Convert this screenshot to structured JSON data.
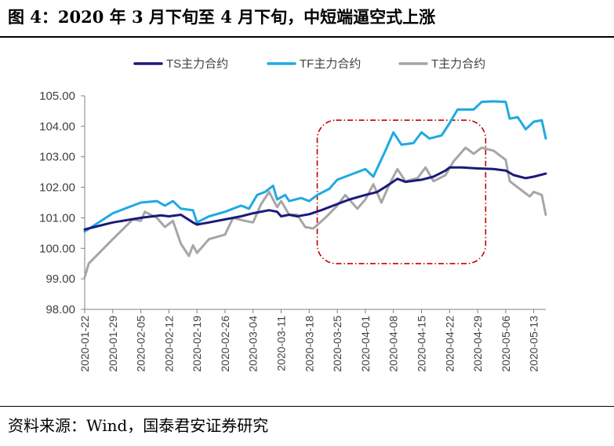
{
  "figure_title": "图 4：2020 年 3 月下旬至 4 月下旬，中短端逼空式上涨",
  "source_note": "资料来源：Wind，国泰君安证券研究",
  "chart_data": {
    "type": "line",
    "title": "",
    "xlabel": "",
    "ylabel": "",
    "ylim": [
      98.0,
      105.0
    ],
    "y_ticks": [
      "98.00",
      "99.00",
      "100.00",
      "101.00",
      "102.00",
      "103.00",
      "104.00",
      "105.00"
    ],
    "x_ticks": [
      "2020-01-22",
      "2020-01-29",
      "2020-02-05",
      "2020-02-12",
      "2020-02-19",
      "2020-02-26",
      "2020-03-04",
      "2020-03-11",
      "2020-03-18",
      "2020-03-25",
      "2020-04-01",
      "2020-04-08",
      "2020-04-15",
      "2020-04-22",
      "2020-04-29",
      "2020-05-06",
      "2020-05-13"
    ],
    "x_range": [
      "2020-01-22",
      "2020-05-16"
    ],
    "grid": false,
    "legend_position": "top",
    "annotation": "red dash-dot rounded rectangle highlighting 2020-03-20 to 2020-05-01",
    "series": [
      {
        "name": "TS主力合约",
        "color": "#1c1a7a",
        "points": [
          [
            "2020-01-22",
            100.62
          ],
          [
            "2020-01-29",
            100.85
          ],
          [
            "2020-02-05",
            101.0
          ],
          [
            "2020-02-08",
            101.05
          ],
          [
            "2020-02-10",
            101.08
          ],
          [
            "2020-02-12",
            101.05
          ],
          [
            "2020-02-15",
            101.1
          ],
          [
            "2020-02-18",
            100.85
          ],
          [
            "2020-02-19",
            100.78
          ],
          [
            "2020-02-22",
            100.85
          ],
          [
            "2020-02-26",
            100.95
          ],
          [
            "2020-03-01",
            101.05
          ],
          [
            "2020-03-04",
            101.15
          ],
          [
            "2020-03-08",
            101.25
          ],
          [
            "2020-03-10",
            101.2
          ],
          [
            "2020-03-11",
            101.05
          ],
          [
            "2020-03-13",
            101.1
          ],
          [
            "2020-03-15",
            101.05
          ],
          [
            "2020-03-18",
            101.12
          ],
          [
            "2020-03-21",
            101.25
          ],
          [
            "2020-03-25",
            101.45
          ],
          [
            "2020-03-28",
            101.6
          ],
          [
            "2020-04-01",
            101.75
          ],
          [
            "2020-04-04",
            101.85
          ],
          [
            "2020-04-07",
            102.1
          ],
          [
            "2020-04-09",
            102.28
          ],
          [
            "2020-04-11",
            102.18
          ],
          [
            "2020-04-15",
            102.25
          ],
          [
            "2020-04-18",
            102.35
          ],
          [
            "2020-04-21",
            102.55
          ],
          [
            "2020-04-22",
            102.65
          ],
          [
            "2020-04-25",
            102.65
          ],
          [
            "2020-04-29",
            102.62
          ],
          [
            "2020-05-03",
            102.6
          ],
          [
            "2020-05-06",
            102.55
          ],
          [
            "2020-05-08",
            102.4
          ],
          [
            "2020-05-11",
            102.3
          ],
          [
            "2020-05-13",
            102.35
          ],
          [
            "2020-05-16",
            102.45
          ]
        ]
      },
      {
        "name": "TF主力合约",
        "color": "#1faae2",
        "points": [
          [
            "2020-01-22",
            100.55
          ],
          [
            "2020-01-29",
            101.15
          ],
          [
            "2020-02-02",
            101.35
          ],
          [
            "2020-02-05",
            101.5
          ],
          [
            "2020-02-09",
            101.55
          ],
          [
            "2020-02-11",
            101.4
          ],
          [
            "2020-02-13",
            101.55
          ],
          [
            "2020-02-15",
            101.3
          ],
          [
            "2020-02-18",
            101.25
          ],
          [
            "2020-02-19",
            100.85
          ],
          [
            "2020-02-22",
            101.05
          ],
          [
            "2020-02-26",
            101.2
          ],
          [
            "2020-03-01",
            101.4
          ],
          [
            "2020-03-03",
            101.3
          ],
          [
            "2020-03-05",
            101.75
          ],
          [
            "2020-03-07",
            101.85
          ],
          [
            "2020-03-09",
            102.05
          ],
          [
            "2020-03-10",
            101.6
          ],
          [
            "2020-03-12",
            101.75
          ],
          [
            "2020-03-13",
            101.55
          ],
          [
            "2020-03-16",
            101.65
          ],
          [
            "2020-03-18",
            101.55
          ],
          [
            "2020-03-20",
            101.75
          ],
          [
            "2020-03-23",
            101.95
          ],
          [
            "2020-03-25",
            102.25
          ],
          [
            "2020-03-29",
            102.45
          ],
          [
            "2020-04-01",
            102.6
          ],
          [
            "2020-04-03",
            102.35
          ],
          [
            "2020-04-06",
            103.2
          ],
          [
            "2020-04-08",
            103.8
          ],
          [
            "2020-04-10",
            103.4
          ],
          [
            "2020-04-13",
            103.45
          ],
          [
            "2020-04-15",
            103.8
          ],
          [
            "2020-04-17",
            103.6
          ],
          [
            "2020-04-20",
            103.7
          ],
          [
            "2020-04-22",
            104.1
          ],
          [
            "2020-04-24",
            104.55
          ],
          [
            "2020-04-28",
            104.55
          ],
          [
            "2020-04-30",
            104.8
          ],
          [
            "2020-05-03",
            104.82
          ],
          [
            "2020-05-06",
            104.8
          ],
          [
            "2020-05-07",
            104.25
          ],
          [
            "2020-05-09",
            104.3
          ],
          [
            "2020-05-11",
            103.9
          ],
          [
            "2020-05-13",
            104.15
          ],
          [
            "2020-05-15",
            104.2
          ],
          [
            "2020-05-16",
            103.6
          ]
        ]
      },
      {
        "name": "T主力合约",
        "color": "#a6a6a6",
        "points": [
          [
            "2020-01-22",
            99.05
          ],
          [
            "2020-01-23",
            99.5
          ],
          [
            "2020-01-29",
            100.3
          ],
          [
            "2020-02-03",
            100.95
          ],
          [
            "2020-02-05",
            100.9
          ],
          [
            "2020-02-06",
            101.2
          ],
          [
            "2020-02-09",
            101.0
          ],
          [
            "2020-02-11",
            100.7
          ],
          [
            "2020-02-13",
            100.9
          ],
          [
            "2020-02-15",
            100.15
          ],
          [
            "2020-02-17",
            99.75
          ],
          [
            "2020-02-18",
            100.1
          ],
          [
            "2020-02-19",
            99.85
          ],
          [
            "2020-02-22",
            100.3
          ],
          [
            "2020-02-26",
            100.45
          ],
          [
            "2020-02-28",
            101.0
          ],
          [
            "2020-03-02",
            100.9
          ],
          [
            "2020-03-04",
            100.85
          ],
          [
            "2020-03-06",
            101.45
          ],
          [
            "2020-03-08",
            101.85
          ],
          [
            "2020-03-10",
            101.35
          ],
          [
            "2020-03-11",
            101.55
          ],
          [
            "2020-03-13",
            101.1
          ],
          [
            "2020-03-15",
            101.1
          ],
          [
            "2020-03-17",
            100.7
          ],
          [
            "2020-03-19",
            100.65
          ],
          [
            "2020-03-22",
            101.0
          ],
          [
            "2020-03-25",
            101.4
          ],
          [
            "2020-03-27",
            101.75
          ],
          [
            "2020-03-30",
            101.3
          ],
          [
            "2020-04-01",
            101.6
          ],
          [
            "2020-04-03",
            102.1
          ],
          [
            "2020-04-05",
            101.5
          ],
          [
            "2020-04-07",
            102.1
          ],
          [
            "2020-04-09",
            102.6
          ],
          [
            "2020-04-11",
            102.2
          ],
          [
            "2020-04-14",
            102.3
          ],
          [
            "2020-04-16",
            102.65
          ],
          [
            "2020-04-18",
            102.2
          ],
          [
            "2020-04-21",
            102.4
          ],
          [
            "2020-04-23",
            102.85
          ],
          [
            "2020-04-26",
            103.3
          ],
          [
            "2020-04-28",
            103.1
          ],
          [
            "2020-04-30",
            103.3
          ],
          [
            "2020-05-03",
            103.2
          ],
          [
            "2020-05-06",
            102.9
          ],
          [
            "2020-05-07",
            102.2
          ],
          [
            "2020-05-10",
            101.9
          ],
          [
            "2020-05-12",
            101.7
          ],
          [
            "2020-05-13",
            101.85
          ],
          [
            "2020-05-15",
            101.75
          ],
          [
            "2020-05-16",
            101.1
          ]
        ]
      }
    ]
  }
}
